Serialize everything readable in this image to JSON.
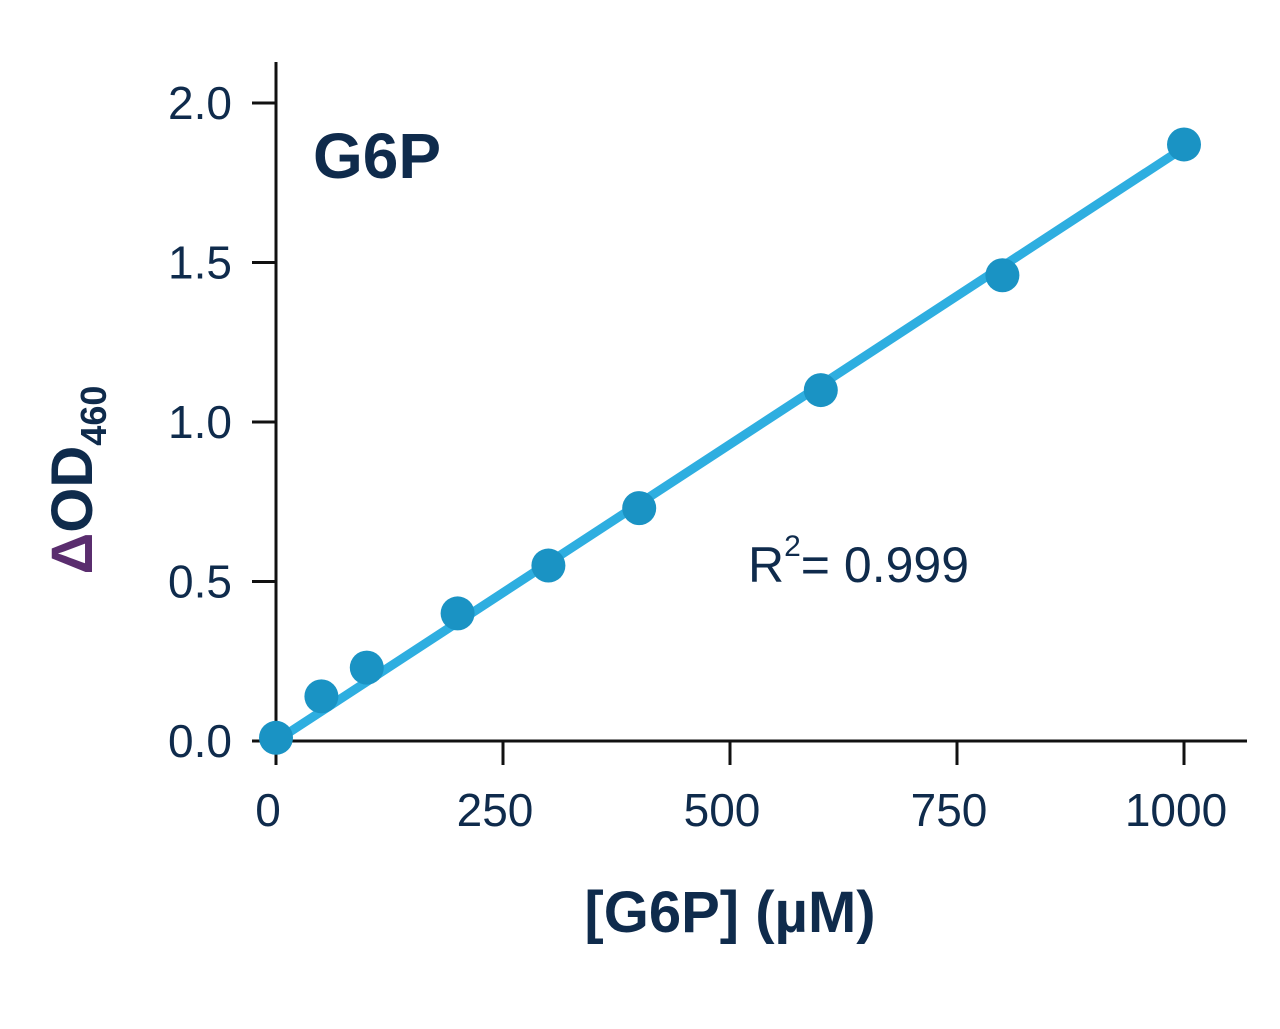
{
  "chart_data": {
    "type": "scatter",
    "title": "G6P",
    "xlabel": "[G6P] (µM)",
    "ylabel": {
      "symbol": "Δ",
      "main": "OD",
      "subscript": "460"
    },
    "annotation": {
      "prefix": "R",
      "superscript": "2",
      "suffix": "= 0.999"
    },
    "xlim": [
      0,
      1060
    ],
    "ylim": [
      0,
      2.12
    ],
    "xticks": [
      0,
      250,
      500,
      750,
      1000
    ],
    "yticks": [
      0.0,
      0.5,
      1.0,
      1.5,
      2.0
    ],
    "xtick_labels": [
      "0",
      "250",
      "500",
      "750",
      "1000"
    ],
    "ytick_labels": [
      "0.0",
      "0.5",
      "1.0",
      "1.5",
      "2.0"
    ],
    "series": [
      {
        "x": [
          0,
          50,
          100,
          200,
          300,
          400,
          600,
          800,
          1000
        ],
        "y": [
          0.01,
          0.14,
          0.23,
          0.4,
          0.55,
          0.73,
          1.1,
          1.46,
          1.87
        ]
      }
    ],
    "fit_line": {
      "x": [
        0,
        1000
      ],
      "y": [
        0.0,
        1.86
      ]
    },
    "grid": false,
    "colors": {
      "point": "#1a93c4",
      "line": "#2eaee0",
      "axis": "#111111",
      "text": "#0f2b4c",
      "delta": "#5a2d6e"
    }
  }
}
